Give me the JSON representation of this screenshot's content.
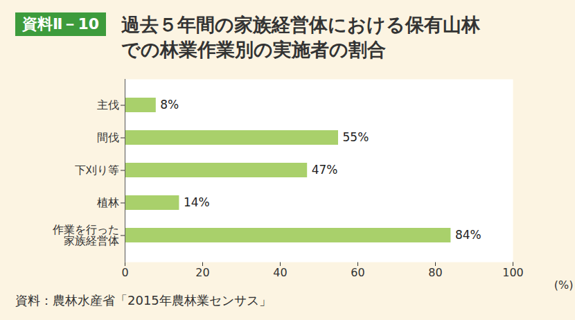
{
  "chart_data": {
    "type": "bar",
    "orientation": "horizontal",
    "annotations": [
      "資料Ⅱ－10"
    ],
    "title": "過去５年間の家族経営体における保有山林\nでの林業作業別の実施者の割合",
    "caption": "資料：農林水産省「2015年農林業センサス」",
    "x_label": "(%)",
    "categories": [
      "主伐",
      "間伐",
      "下刈り等",
      "植林",
      "作業を行った\n家族経営体"
    ],
    "values": [
      8,
      55,
      47,
      14,
      84
    ],
    "value_labels": [
      "8%",
      "55%",
      "47%",
      "14%",
      "84%"
    ],
    "data_labels": true,
    "color": "#a9d06b",
    "xlim": [
      0,
      100
    ],
    "xticks": [
      0,
      20,
      40,
      60,
      80,
      100
    ],
    "grid": false
  }
}
